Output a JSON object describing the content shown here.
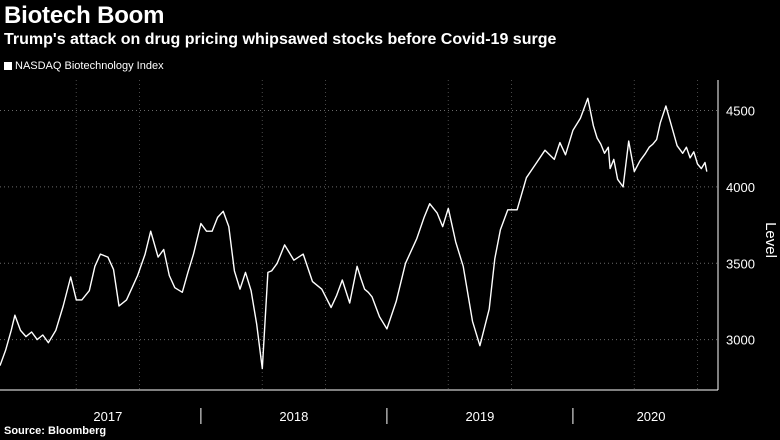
{
  "chart_data": {
    "type": "line",
    "title": "Biotech Boom",
    "subtitle": "Trump's attack on drug pricing whipsawed stocks before Covid-19 surge",
    "source": "Source: Bloomberg",
    "ylabel": "Level",
    "xlabel": "",
    "ylim": [
      2670,
      4700
    ],
    "xlim": [
      2016.92,
      2020.78
    ],
    "yticks": [
      3000,
      3500,
      4000,
      4500
    ],
    "ytick_labels": [
      "3000",
      "3500",
      "4000",
      "4500"
    ],
    "x_category_labels": [
      {
        "label": "2017",
        "x": 2017.5
      },
      {
        "label": "2018",
        "x": 2018.5
      },
      {
        "label": "2019",
        "x": 2019.5
      },
      {
        "label": "2020",
        "x": 2020.42
      }
    ],
    "x_year_dividers": [
      2018.0,
      2019.0,
      2020.0
    ],
    "grid": true,
    "legend_position": "top-left",
    "series": [
      {
        "name": "NASDAQ Biotechnology Index",
        "color": "#ffffff",
        "x": [
          2016.92,
          2016.95,
          2016.98,
          2017.0,
          2017.03,
          2017.06,
          2017.09,
          2017.12,
          2017.15,
          2017.18,
          2017.22,
          2017.26,
          2017.3,
          2017.33,
          2017.36,
          2017.4,
          2017.43,
          2017.46,
          2017.5,
          2017.53,
          2017.56,
          2017.6,
          2017.63,
          2017.66,
          2017.7,
          2017.73,
          2017.77,
          2017.8,
          2017.83,
          2017.86,
          2017.9,
          2017.93,
          2017.96,
          2018.0,
          2018.03,
          2018.06,
          2018.09,
          2018.12,
          2018.15,
          2018.18,
          2018.21,
          2018.24,
          2018.27,
          2018.3,
          2018.33,
          2018.36,
          2018.38,
          2018.41,
          2018.45,
          2018.5,
          2018.55,
          2018.6,
          2018.65,
          2018.7,
          2018.73,
          2018.76,
          2018.8,
          2018.84,
          2018.86,
          2018.88,
          2018.9,
          2018.92,
          2018.96,
          2019.0,
          2019.05,
          2019.1,
          2019.16,
          2019.2,
          2019.23,
          2019.27,
          2019.3,
          2019.33,
          2019.37,
          2019.41,
          2019.46,
          2019.5,
          2019.55,
          2019.58,
          2019.61,
          2019.65,
          2019.7,
          2019.75,
          2019.8,
          2019.85,
          2019.9,
          2019.93,
          2019.96,
          2020.0,
          2020.04,
          2020.08,
          2020.11,
          2020.13,
          2020.15,
          2020.17,
          2020.19,
          2020.2,
          2020.22,
          2020.24,
          2020.27,
          2020.3,
          2020.33,
          2020.36,
          2020.39,
          2020.41,
          2020.43,
          2020.45,
          2020.47,
          2020.5,
          2020.53,
          2020.56,
          2020.59,
          2020.61,
          2020.63,
          2020.65,
          2020.67,
          2020.69,
          2020.71,
          2020.72
        ],
        "values": [
          2830,
          2930,
          3060,
          3160,
          3060,
          3020,
          3050,
          3000,
          3030,
          2980,
          3060,
          3220,
          3410,
          3260,
          3260,
          3320,
          3480,
          3560,
          3540,
          3460,
          3220,
          3260,
          3340,
          3420,
          3560,
          3710,
          3540,
          3590,
          3420,
          3340,
          3310,
          3440,
          3560,
          3760,
          3710,
          3710,
          3800,
          3840,
          3740,
          3450,
          3330,
          3440,
          3320,
          3100,
          2810,
          3440,
          3450,
          3500,
          3620,
          3520,
          3560,
          3380,
          3330,
          3210,
          3290,
          3390,
          3240,
          3480,
          3400,
          3330,
          3310,
          3280,
          3150,
          3070,
          3250,
          3500,
          3660,
          3800,
          3890,
          3830,
          3740,
          3860,
          3640,
          3480,
          3120,
          2960,
          3200,
          3530,
          3720,
          3850,
          3850,
          4060,
          4150,
          4240,
          4180,
          4290,
          4210,
          4370,
          4450,
          4580,
          4400,
          4320,
          4280,
          4220,
          4260,
          4120,
          4180,
          4050,
          4000,
          4300,
          4100,
          4170,
          4220,
          4260,
          4280,
          4310,
          4420,
          4530,
          4400,
          4270,
          4220,
          4260,
          4190,
          4230,
          4150,
          4120,
          4160,
          4100
        ]
      }
    ]
  }
}
